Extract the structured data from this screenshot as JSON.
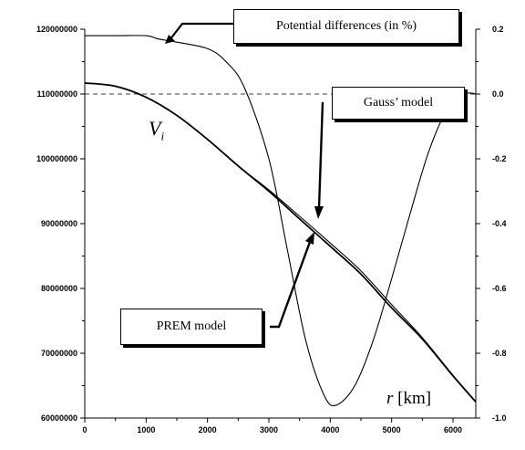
{
  "chart_data": {
    "type": "line",
    "x_axis": {
      "label_var": "r",
      "label_unit": "[km]",
      "range": [
        0,
        6371
      ],
      "ticks": [
        "0",
        "1000",
        "2000",
        "3000",
        "4000",
        "5000",
        "6000"
      ]
    },
    "y_axis_left": {
      "range": [
        60000000,
        120000000
      ],
      "ticks": [
        "60000000",
        "70000000",
        "80000000",
        "90000000",
        "100000000",
        "110000000",
        "120000000"
      ]
    },
    "y_axis_right": {
      "range": [
        -1.0,
        0.2
      ],
      "ticks": [
        "-1.0",
        "-0.8",
        "-0.6",
        "-0.4",
        "-0.2",
        "0.0",
        "0.2"
      ]
    },
    "zero_reference_line": "dashed",
    "series": [
      {
        "name": "PREM model",
        "axis": "left",
        "x": [
          0,
          500,
          1000,
          1500,
          2000,
          2500,
          3000,
          3480,
          4000,
          4500,
          5000,
          5500,
          6000,
          6371
        ],
        "y": [
          111700000,
          111200000,
          109500000,
          106700000,
          103000000,
          98900000,
          95000000,
          90900000,
          86500000,
          82200000,
          77000000,
          72200000,
          66500000,
          62500000
        ]
      },
      {
        "name": "Gauss' model",
        "axis": "left",
        "x": [
          0,
          500,
          1000,
          1500,
          2000,
          2500,
          3000,
          3480,
          4000,
          4500,
          5000,
          5500,
          6000,
          6371
        ],
        "y": [
          111700000,
          111200000,
          109500000,
          106700000,
          103000000,
          98900000,
          95200000,
          91300000,
          87000000,
          82700000,
          77500000,
          72400000,
          66600000,
          62500000
        ]
      },
      {
        "name": "Potential differences (in %)",
        "axis": "right",
        "x": [
          0,
          500,
          1000,
          1200,
          1500,
          2000,
          2300,
          2600,
          3000,
          3300,
          3600,
          3900,
          4100,
          4400,
          4700,
          5000,
          5300,
          5600,
          5900,
          6200,
          6371
        ],
        "y": [
          0.18,
          0.18,
          0.18,
          0.17,
          0.16,
          0.14,
          0.1,
          0.02,
          -0.2,
          -0.48,
          -0.76,
          -0.93,
          -0.96,
          -0.9,
          -0.76,
          -0.57,
          -0.37,
          -0.18,
          -0.05,
          0.0,
          0.0
        ]
      }
    ],
    "annotations": {
      "potential_label": "Potential differences (in %)",
      "gauss_label": "Gauss’ model",
      "prem_label": "PREM model",
      "vi_main": "V",
      "vi_sub": "i"
    }
  }
}
